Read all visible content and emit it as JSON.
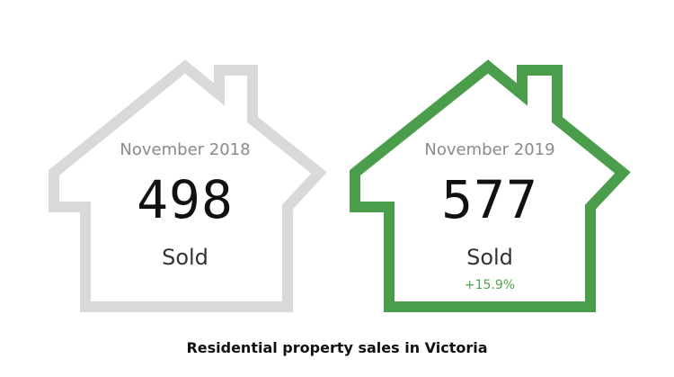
{
  "cards": [
    {
      "month": "November 2018",
      "count": "498",
      "label": "Sold",
      "change": "",
      "outline_color": "#d9d9d9"
    },
    {
      "month": "November 2019",
      "count": "577",
      "label": "Sold",
      "change": "+15.9%",
      "outline_color": "#4a9d4a"
    }
  ],
  "caption": "Residential property sales in Victoria",
  "colors": {
    "change_text": "#4fa24f",
    "muted_text": "#8a8a8a"
  },
  "icons": [
    "house-outline-icon",
    "house-outline-icon"
  ]
}
